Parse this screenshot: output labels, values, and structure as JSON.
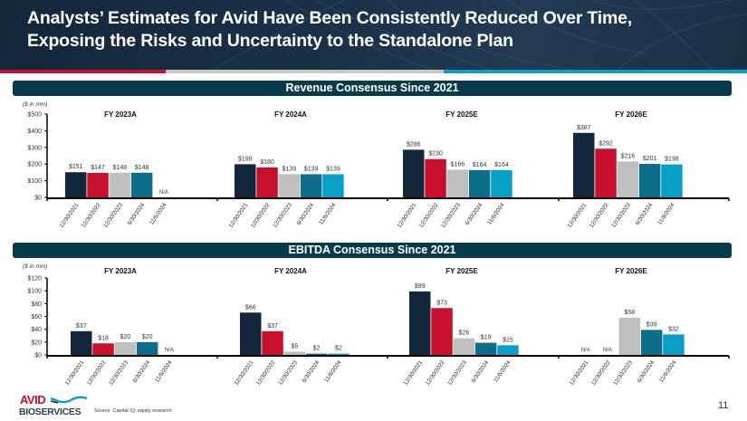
{
  "header": {
    "title_line1": "Analysts’ Estimates for Avid Have Been Consistently Reduced Over Time,",
    "title_line2": "Exposing the Risks and Uncertainty to the Standalone Plan"
  },
  "colors": {
    "banner": "#13273b",
    "stripe_red": "#c8102e",
    "stripe_gray": "#c9c9c9",
    "stripe_blue": "#0a9fc7",
    "section_bar": "#073b4c",
    "series": [
      "#13273b",
      "#c8102e",
      "#bfbfbf",
      "#0e6e8a",
      "#0a9fc7"
    ]
  },
  "footer": {
    "source": "Source: Capital IQ; equity research",
    "page_number": "11",
    "logo_top": "AVID",
    "logo_bottom": "BIOSERVICES"
  },
  "chart_data": [
    {
      "type": "bar",
      "title": "Revenue Consensus Since 2021",
      "ylabel": "($ in mm)",
      "ylim": [
        0,
        500
      ],
      "yticks": [
        0,
        100,
        200,
        300,
        400,
        500
      ],
      "ytick_labels": [
        "$0",
        "$100",
        "$200",
        "$300",
        "$400",
        "$500"
      ],
      "series_names": [
        "12/30/2021",
        "12/30/2022",
        "12/30/2023",
        "6/30/2024",
        "11/6/2024"
      ],
      "groups": [
        {
          "label": "FY 2023A",
          "values": [
            151,
            147,
            148,
            148,
            null
          ],
          "labels": [
            "$151",
            "$147",
            "$148",
            "$148",
            "N/A"
          ]
        },
        {
          "label": "FY 2024A",
          "values": [
            199,
            180,
            139,
            139,
            139
          ],
          "labels": [
            "$199",
            "$180",
            "$139",
            "$139",
            "$139"
          ]
        },
        {
          "label": "FY 2025E",
          "values": [
            286,
            230,
            166,
            164,
            164
          ],
          "labels": [
            "$286",
            "$230",
            "$166",
            "$164",
            "$164"
          ]
        },
        {
          "label": "FY 2026E",
          "values": [
            387,
            292,
            216,
            201,
            198
          ],
          "labels": [
            "$387",
            "$292",
            "$216",
            "$201",
            "$198"
          ]
        }
      ]
    },
    {
      "type": "bar",
      "title": "EBITDA Consensus Since 2021",
      "ylabel": "($ in mm)",
      "ylim": [
        0,
        120
      ],
      "yticks": [
        0,
        20,
        40,
        60,
        80,
        100,
        120
      ],
      "ytick_labels": [
        "$0",
        "$20",
        "$40",
        "$60",
        "$80",
        "$100",
        "$120"
      ],
      "series_names": [
        "12/30/2021",
        "12/30/2022",
        "12/30/2023",
        "6/30/2024",
        "11/6/2024"
      ],
      "groups": [
        {
          "label": "FY 2023A",
          "values": [
            37,
            18,
            20,
            20,
            null
          ],
          "labels": [
            "$37",
            "$18",
            "$20",
            "$20",
            "N/A"
          ]
        },
        {
          "label": "FY 2024A",
          "values": [
            66,
            37,
            5,
            2,
            2
          ],
          "labels": [
            "$66",
            "$37",
            "$5",
            "$2",
            "$2"
          ]
        },
        {
          "label": "FY 2025E",
          "values": [
            99,
            73,
            26,
            19,
            15
          ],
          "labels": [
            "$99",
            "$73",
            "$26",
            "$19",
            "$15"
          ]
        },
        {
          "label": "FY 2026E",
          "values": [
            null,
            null,
            58,
            39,
            32
          ],
          "labels": [
            "N/A",
            "N/A",
            "$58",
            "$39",
            "$32"
          ]
        }
      ]
    }
  ]
}
